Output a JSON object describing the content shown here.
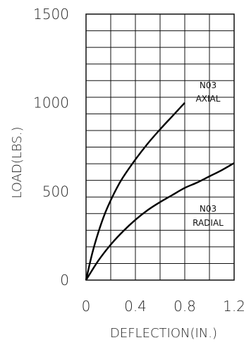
{
  "chart_data": {
    "type": "line",
    "title": "",
    "xlabel": "DEFLECTION(IN.)",
    "ylabel": "LOAD(LBS.)",
    "xlim": [
      0,
      1.2
    ],
    "ylim": [
      0,
      1500
    ],
    "x_ticks": [
      "0",
      "0.4",
      "0.8",
      "1.2"
    ],
    "y_ticks": [
      "0",
      "500",
      "1000",
      "1500"
    ],
    "grid": true,
    "series": [
      {
        "name": "N03 AXIAL",
        "label_lines": [
          "N03",
          "AXIAL"
        ],
        "x": [
          0,
          0.05,
          0.1,
          0.15,
          0.2,
          0.25,
          0.3,
          0.4,
          0.5,
          0.6,
          0.7,
          0.8
        ],
        "y": [
          0,
          150,
          270,
          370,
          450,
          520,
          580,
          680,
          770,
          850,
          925,
          1000
        ]
      },
      {
        "name": "N03 RADIAL",
        "label_lines": [
          "N03",
          "RADIAL"
        ],
        "x": [
          0,
          0.1,
          0.2,
          0.3,
          0.4,
          0.5,
          0.6,
          0.7,
          0.8,
          0.9,
          1.0,
          1.1,
          1.2
        ],
        "y": [
          0,
          110,
          200,
          275,
          340,
          395,
          440,
          480,
          520,
          550,
          585,
          620,
          660
        ]
      }
    ]
  }
}
